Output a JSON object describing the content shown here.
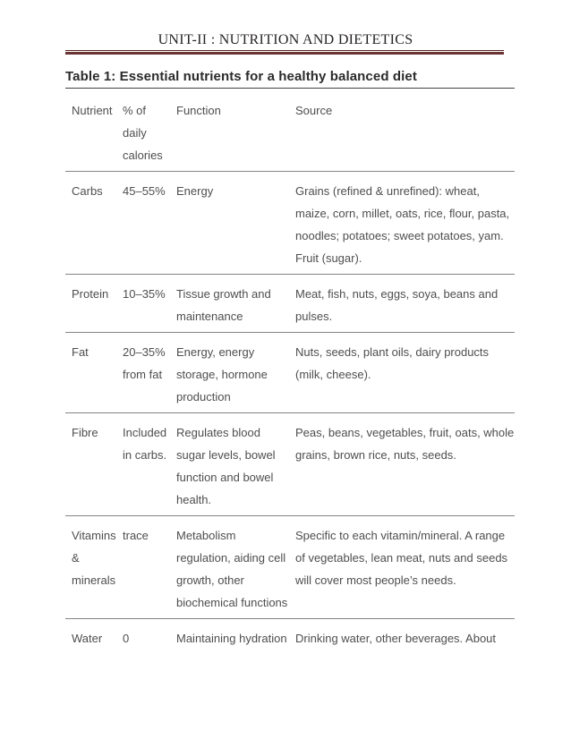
{
  "page": {
    "unit_header": "UNIT-II : NUTRITION AND DIETETICS",
    "table_title": "Table 1: Essential nutrients for a healthy balanced diet",
    "accent_color": "#632423",
    "body_text_color": "#4e4e4e"
  },
  "table": {
    "headers": {
      "nutrient": "Nutrient",
      "percent": [
        "% of",
        "daily",
        "calories"
      ],
      "function": "Function",
      "source": "Source"
    },
    "rows": [
      {
        "nutrient": "Carbs",
        "percent": "45–55%",
        "function": "Energy",
        "source": [
          "Grains (refined & unrefined): wheat,",
          "maize, corn, millet, oats, rice, flour, pasta,",
          "noodles; potatoes; sweet potatoes, yam.",
          "Fruit (sugar)."
        ]
      },
      {
        "nutrient": "Protein",
        "percent": "10–35%",
        "function": [
          "Tissue growth and",
          "maintenance"
        ],
        "source": [
          "Meat, fish, nuts, eggs, soya, beans and",
          "pulses."
        ]
      },
      {
        "nutrient": "Fat",
        "percent": [
          "20–35%",
          "from fat"
        ],
        "function": [
          "Energy, energy",
          "storage, hormone",
          "production"
        ],
        "source": [
          "Nuts, seeds, plant oils, dairy products",
          "(milk, cheese)."
        ]
      },
      {
        "nutrient": "Fibre",
        "percent": [
          "Included",
          "in carbs."
        ],
        "function": [
          "Regulates blood",
          "sugar levels, bowel",
          "function and bowel",
          "health."
        ],
        "source": [
          "Peas, beans, vegetables, fruit, oats, whole",
          "grains, brown rice, nuts, seeds."
        ]
      },
      {
        "nutrient": [
          "Vitamins",
          "&",
          "minerals"
        ],
        "percent": "trace",
        "function": [
          "Metabolism",
          "regulation, aiding cell",
          "growth, other",
          "biochemical functions"
        ],
        "source": [
          "Specific to each vitamin/mineral. A range",
          "of vegetables, lean meat, nuts and seeds",
          "will cover most people’s needs."
        ]
      },
      {
        "nutrient": "Water",
        "percent": "0",
        "function": "Maintaining hydration",
        "source": "Drinking water, other beverages. About"
      }
    ]
  }
}
